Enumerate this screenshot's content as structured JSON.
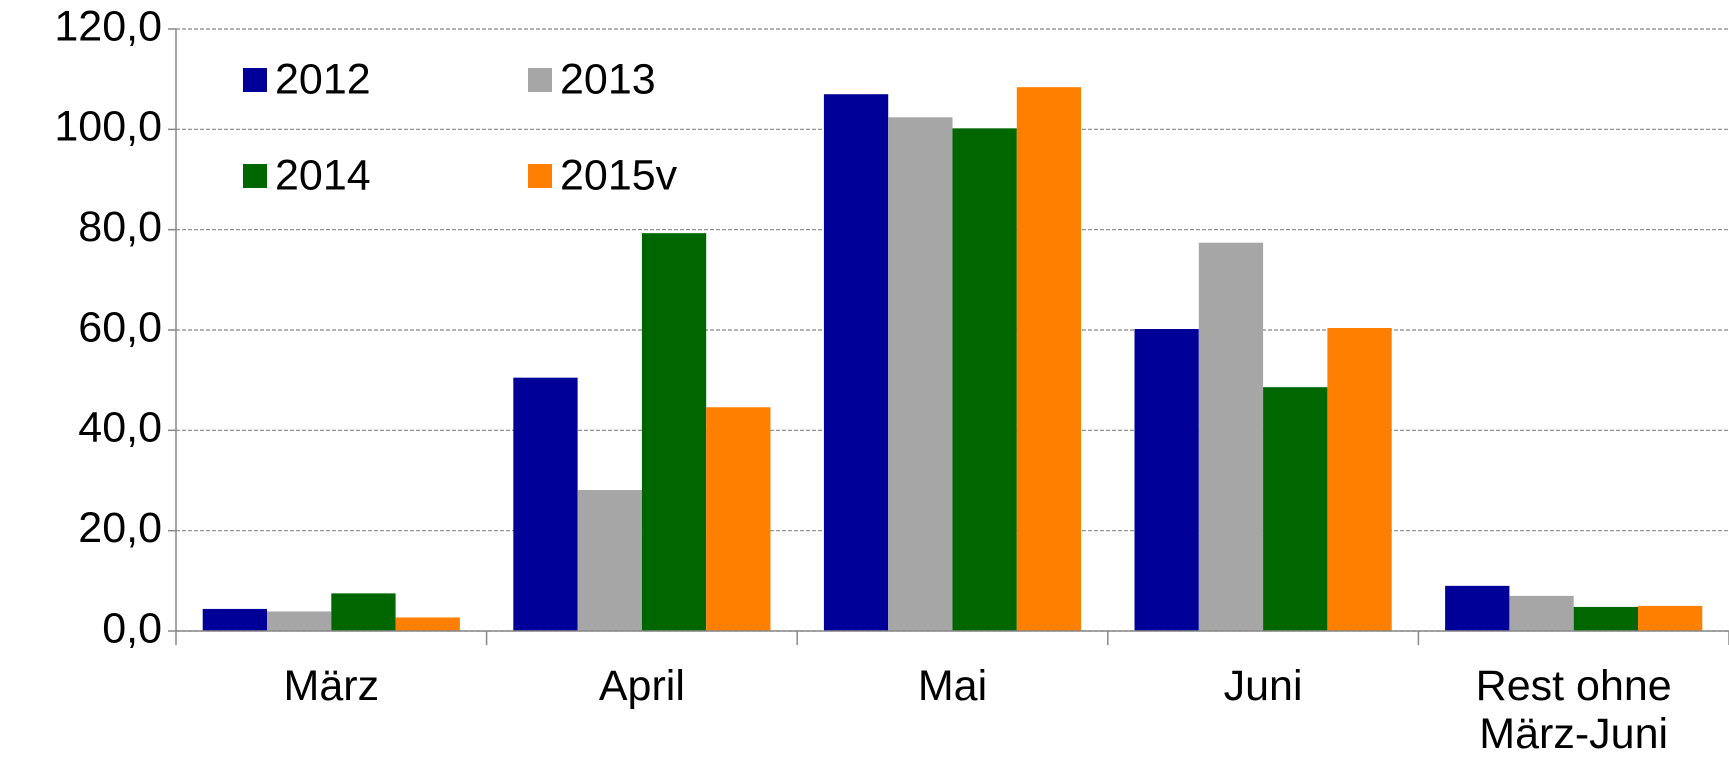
{
  "chart_data": {
    "type": "bar",
    "categories": [
      "März",
      "April",
      "Mai",
      "Juni",
      "Rest ohne März-Juni"
    ],
    "series": [
      {
        "name": "2012",
        "color": "#000099",
        "values": [
          4.4,
          50.5,
          107.0,
          60.2,
          9.0
        ]
      },
      {
        "name": "2013",
        "color": "#a6a6a6",
        "values": [
          3.9,
          28.1,
          102.4,
          77.4,
          7.0
        ]
      },
      {
        "name": "2014",
        "color": "#006600",
        "values": [
          7.5,
          79.3,
          100.2,
          48.6,
          4.8
        ]
      },
      {
        "name": "2015v",
        "color": "#ff8000",
        "values": [
          2.7,
          44.6,
          108.4,
          60.4,
          5.0
        ]
      }
    ],
    "ylim": [
      0,
      120
    ],
    "yticks": [
      {
        "value": 0,
        "label": "0,0"
      },
      {
        "value": 20,
        "label": "20,0"
      },
      {
        "value": 40,
        "label": "40,0"
      },
      {
        "value": 60,
        "label": "60,0"
      },
      {
        "value": 80,
        "label": "80,0"
      },
      {
        "value": 100,
        "label": "100,0"
      },
      {
        "value": 120,
        "label": "120,0"
      }
    ],
    "grid": true,
    "legend": "upper left"
  }
}
